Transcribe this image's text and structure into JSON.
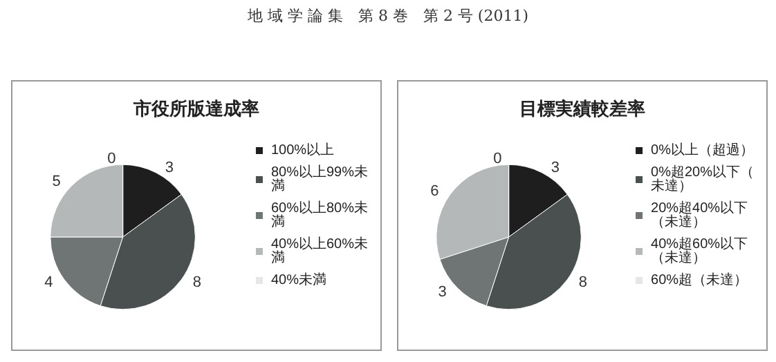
{
  "chart_data": [
    {
      "type": "pie",
      "title": "市役所版達成率",
      "annotations": [
        "地 域 学 論 集　第 8 巻　第 2 号 (2011)"
      ],
      "categories": [
        "100%以上",
        "80%以上99%未満",
        "60%以上80%未満",
        "40%以上60%未満",
        "40%未満"
      ],
      "values": [
        3,
        8,
        4,
        5,
        0
      ],
      "colors": [
        "#1e1e1e",
        "#4a4f4f",
        "#6f7474",
        "#b4b8b8",
        "#e6e6e6"
      ],
      "value_labels": [
        "3",
        "8",
        "4",
        "5",
        "0"
      ],
      "legend": "right"
    },
    {
      "type": "pie",
      "title": "目標実績較差率",
      "categories": [
        "0%以上（超過）",
        "0%超20%以下（未達）",
        "20%超40%以下（未達）",
        "40%超60%以下（未達）",
        "60%超（未達）"
      ],
      "values": [
        3,
        8,
        3,
        6,
        0
      ],
      "colors": [
        "#1e1e1e",
        "#4a4f4f",
        "#6f7474",
        "#b4b8b8",
        "#e6e6e6"
      ],
      "value_labels": [
        "3",
        "8",
        "3",
        "6",
        "0"
      ],
      "legend": "right"
    }
  ]
}
